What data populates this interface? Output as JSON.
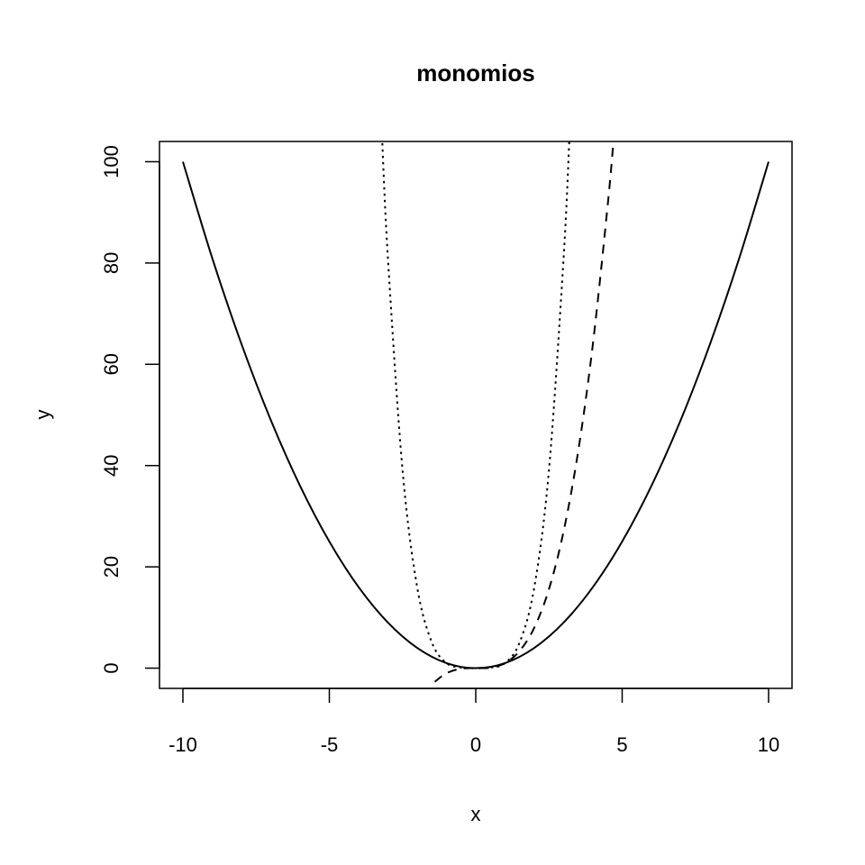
{
  "chart_data": {
    "type": "line",
    "title": "monomios",
    "xlabel": "x",
    "ylabel": "y",
    "xlim": [
      -10.8,
      10.8
    ],
    "ylim": [
      -4,
      104
    ],
    "x_ticks": [
      -10,
      -5,
      0,
      5,
      10
    ],
    "y_ticks": [
      0,
      20,
      40,
      60,
      80,
      100
    ],
    "grid": false,
    "legend": "none",
    "series": [
      {
        "style": "solid",
        "color": "#000000",
        "x": [
          -10,
          -9,
          -8,
          -7,
          -6,
          -5,
          -4,
          -3,
          -2,
          -1,
          0,
          1,
          2,
          3,
          4,
          5,
          6,
          7,
          8,
          9,
          10
        ],
        "y": [
          100,
          81,
          64,
          49,
          36,
          25,
          16,
          9,
          4,
          1,
          0,
          1,
          4,
          9,
          16,
          25,
          36,
          49,
          64,
          81,
          100
        ]
      },
      {
        "style": "dashed",
        "color": "#000000",
        "x": [
          -1.4,
          -1,
          -0.5,
          0,
          0.5,
          1,
          1.5,
          2,
          2.5,
          3,
          3.5,
          4,
          4.5,
          4.7
        ],
        "y": [
          -2.7,
          -1,
          -0.1,
          0,
          0.1,
          1,
          3.4,
          8,
          15.6,
          27,
          42.9,
          64,
          91.1,
          103.8
        ]
      },
      {
        "style": "dotted",
        "color": "#000000",
        "x": [
          -3.2,
          -3,
          -2.5,
          -2,
          -1.5,
          -1,
          -0.5,
          0,
          0.5,
          1,
          1.5,
          2,
          2.5,
          3,
          3.2
        ],
        "y": [
          104.9,
          81,
          39.1,
          16,
          5.1,
          1,
          0.1,
          0,
          0.1,
          1,
          5.1,
          16,
          39.1,
          81,
          104.9
        ]
      }
    ]
  }
}
